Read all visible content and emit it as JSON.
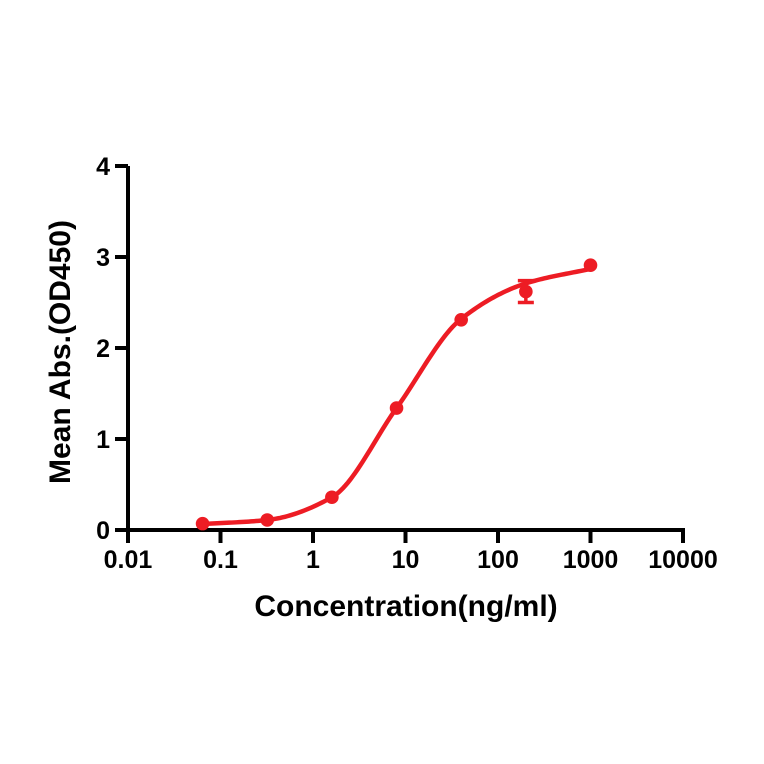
{
  "chart_data": {
    "type": "scatter",
    "subtype": "sigmoidal-dose-response-fit",
    "title": "",
    "xlabel": "Concentration(ng/ml)",
    "ylabel": "Mean Abs.(OD450)",
    "x_scale": "log10",
    "xlim": [
      0.01,
      10000
    ],
    "ylim": [
      0,
      4
    ],
    "x_ticks": [
      0.01,
      0.1,
      1,
      10,
      100,
      1000,
      10000
    ],
    "x_tick_labels": [
      "0.01",
      "0.1",
      "1",
      "10",
      "100",
      "1000",
      "10000"
    ],
    "y_ticks": [
      0,
      1,
      2,
      3,
      4
    ],
    "y_tick_labels": [
      "0",
      "1",
      "2",
      "3",
      "4"
    ],
    "grid": false,
    "legend": "none",
    "axis_color": "#000000",
    "background_color": "#ffffff",
    "series": [
      {
        "name": "Mean Abs.(OD450)",
        "color": "#ED1C24",
        "marker": "circle",
        "x": [
          0.064,
          0.32,
          1.6,
          8,
          40,
          200,
          1000
        ],
        "y": [
          0.07,
          0.11,
          0.36,
          1.34,
          2.31,
          2.62,
          2.91
        ],
        "y_err": [
          0,
          0,
          0,
          0,
          0,
          0.12,
          0
        ],
        "fit_curve": {
          "model": "4PL sigmoid",
          "anchors_x": [
            0.064,
            0.32,
            1.6,
            8,
            40,
            200,
            1000
          ],
          "anchors_y": [
            0.065,
            0.11,
            0.36,
            1.34,
            2.32,
            2.71,
            2.87
          ]
        }
      }
    ]
  }
}
